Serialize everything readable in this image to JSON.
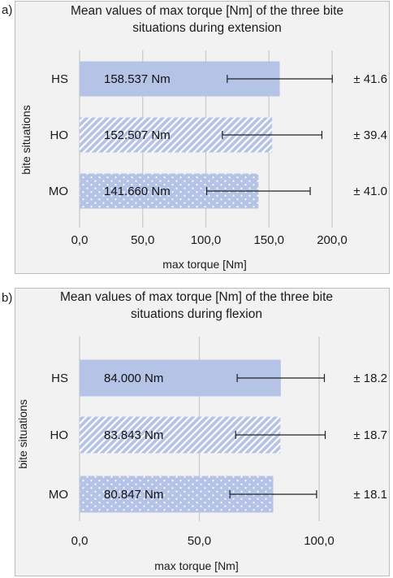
{
  "chart_data": [
    {
      "panel_letter": "a)",
      "type": "bar",
      "orientation": "horizontal",
      "title": "Mean values of max torque [Nm] of the three bite situations during extension",
      "title_lines": [
        "Mean values of max torque [Nm] of the three bite",
        "situations during extension"
      ],
      "xlabel": "max torque  [Nm]",
      "ylabel": "bite situations",
      "xlim": [
        0,
        200
      ],
      "xticks": [
        0,
        50,
        100,
        150,
        200
      ],
      "xtick_labels": [
        "0,0",
        "50,0",
        "100,0",
        "150,0",
        "200,0"
      ],
      "grid": "vertical",
      "categories": [
        "HS",
        "HO",
        "MO"
      ],
      "values": [
        158.537,
        152.507,
        141.66
      ],
      "value_labels": [
        "158.537 Nm",
        "152.507 Nm",
        "141.660 Nm"
      ],
      "errors": [
        41.6,
        39.4,
        41.0
      ],
      "error_labels": [
        "± 41.6",
        "± 39.4",
        "± 41.0"
      ],
      "patterns": [
        "solid",
        "diagonal-stripes",
        "dots"
      ],
      "bar_color": "#b4c3e6"
    },
    {
      "panel_letter": "b)",
      "type": "bar",
      "orientation": "horizontal",
      "title": "Mean values of max torque [Nm] of the three bite situations during flexion",
      "title_lines": [
        "Mean values of max torque [Nm] of the three bite",
        "situations during flexion"
      ],
      "xlabel": "max torque  [Nm]",
      "ylabel": "bite situations",
      "xlim": [
        0,
        100
      ],
      "xticks": [
        0,
        50,
        100
      ],
      "xtick_labels": [
        "0,0",
        "50,0",
        "100,0"
      ],
      "grid": "vertical",
      "categories": [
        "HS",
        "HO",
        "MO"
      ],
      "values": [
        84.0,
        83.843,
        80.847
      ],
      "value_labels": [
        "84.000 Nm",
        "83.843 Nm",
        "80.847 Nm"
      ],
      "errors": [
        18.2,
        18.7,
        18.1
      ],
      "error_labels": [
        "± 18.2",
        "± 18.7",
        "± 18.1"
      ],
      "patterns": [
        "solid",
        "diagonal-stripes",
        "dots"
      ],
      "bar_color": "#b4c3e6"
    }
  ]
}
